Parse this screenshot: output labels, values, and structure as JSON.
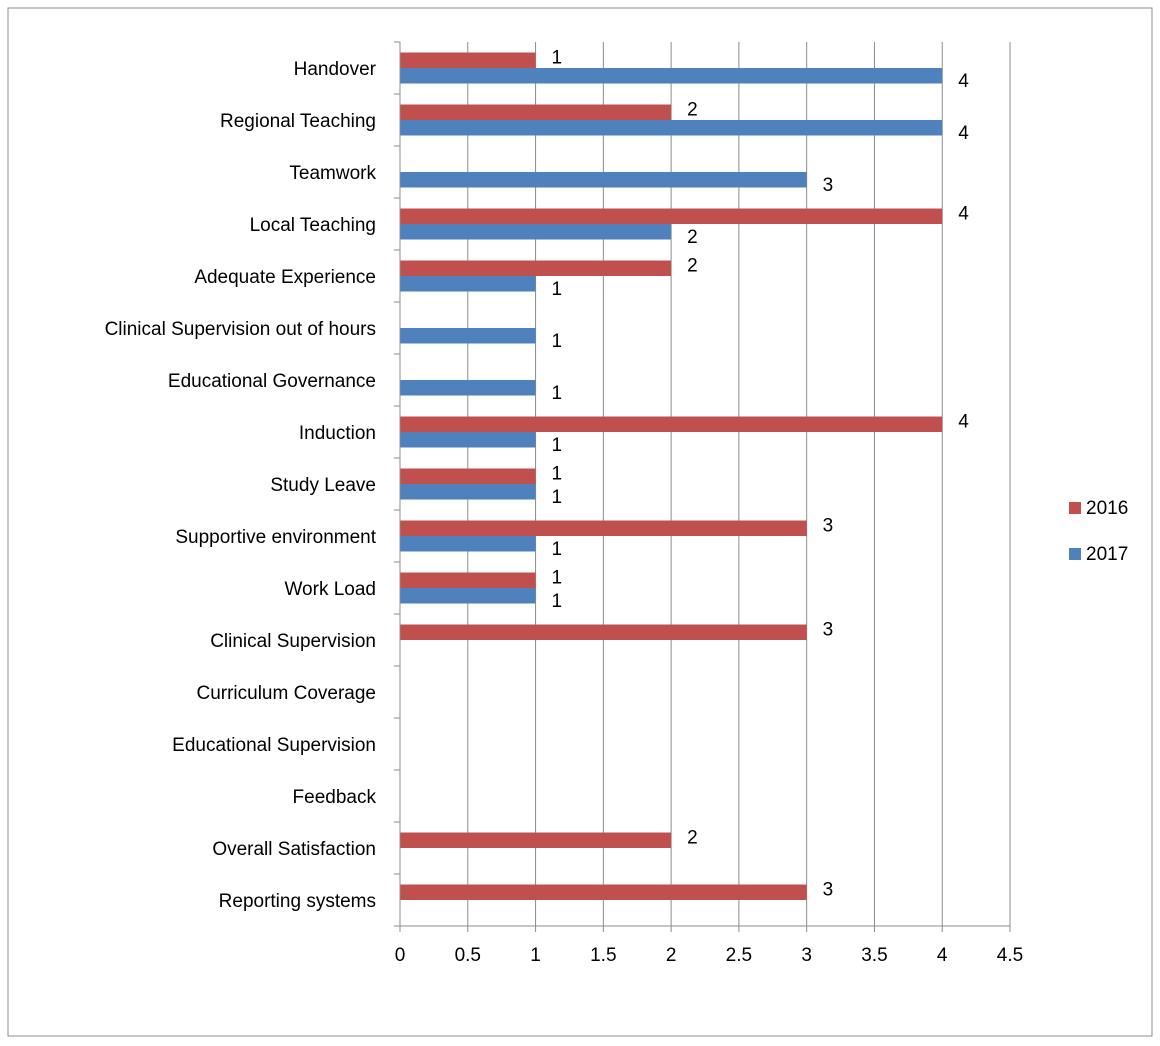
{
  "chart_data": {
    "type": "bar",
    "orientation": "horizontal",
    "categories": [
      "Handover",
      "Regional Teaching",
      "Teamwork",
      "Local Teaching",
      "Adequate Experience",
      "Clinical Supervision out of hours",
      "Educational Governance",
      "Induction",
      "Study Leave",
      "Supportive environment",
      "Work Load",
      "Clinical Supervision",
      "Curriculum Coverage",
      "Educational Supervision",
      "Feedback",
      "Overall Satisfaction",
      "Reporting systems"
    ],
    "series": [
      {
        "name": "2016",
        "color": "#c0504d",
        "values": [
          1,
          2,
          null,
          4,
          2,
          null,
          null,
          4,
          1,
          3,
          1,
          3,
          null,
          null,
          null,
          2,
          3
        ]
      },
      {
        "name": "2017",
        "color": "#4f81bd",
        "values": [
          4,
          4,
          3,
          2,
          1,
          1,
          1,
          1,
          1,
          1,
          1,
          null,
          null,
          null,
          null,
          null,
          null
        ]
      }
    ],
    "xlim": [
      0,
      4.5
    ],
    "xticks": [
      "0",
      "0.5",
      "1",
      "1.5",
      "2",
      "2.5",
      "3",
      "3.5",
      "4",
      "4.5"
    ],
    "grid": "vertical",
    "legend": "right",
    "data_labels": true
  }
}
